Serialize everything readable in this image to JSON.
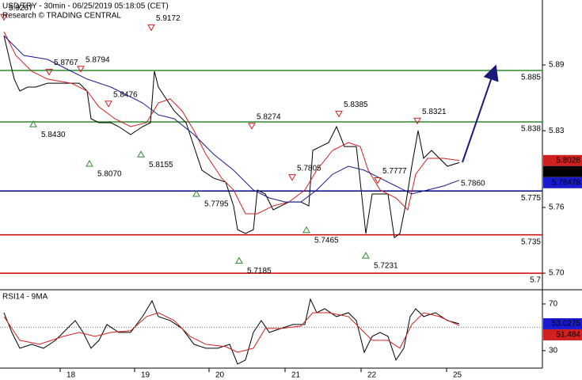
{
  "chart_data": [
    {
      "type": "line",
      "title": "USD/TRY - 30min - 06/25/2019 05:18:05 (CET)",
      "subtitle": "Research © TRADING CENTRAL",
      "xlim": [
        0,
        342.5
      ],
      "ylim": [
        5.6856,
        5.9493
      ],
      "yticks": [
        5.89,
        5.83,
        5.76,
        {
          "value": 5.7,
          "label": "5.70"
        }
      ],
      "levels": [
        {
          "value": 5.885,
          "color": "#2e8b2e"
        },
        {
          "value": 5.838,
          "color": "#2e8b2e"
        },
        {
          "value": 5.775,
          "color": "#00008b"
        },
        {
          "value": 5.735,
          "color": "#cc0000"
        },
        {
          "value": 5.7,
          "color": "#cc0000"
        }
      ],
      "series": [
        {
          "color": "#000000",
          "box": "#000000",
          "x": [
            2.5,
            6,
            9,
            12.5,
            17.5,
            22.5,
            30,
            40,
            50,
            55,
            57.5,
            62.5,
            70,
            75,
            82.5,
            90,
            95,
            97.5,
            100,
            105,
            110,
            117.5,
            122.5,
            127.5,
            135,
            142.5,
            147.5,
            150,
            155,
            160,
            162.5,
            167.5,
            172.5,
            177.5,
            182.5,
            190,
            195,
            197.5,
            202.5,
            207.5,
            212.5,
            217.5,
            225,
            227.5,
            231,
            235,
            245,
            249,
            252.5,
            256,
            260,
            264,
            267.5,
            272.5,
            277.5,
            282.5,
            290
          ],
          "values": [
            5.9168,
            5.8951,
            5.8771,
            5.8662,
            5.8698,
            5.8698,
            5.8734,
            5.8734,
            5.8734,
            5.8662,
            5.8409,
            5.8373,
            5.8373,
            5.8337,
            5.8265,
            5.8337,
            5.8373,
            5.8843,
            5.8698,
            5.859,
            5.8481,
            5.8373,
            5.8156,
            5.794,
            5.7867,
            5.7831,
            5.7614,
            5.7398,
            5.7362,
            5.7398,
            5.7759,
            5.7723,
            5.7578,
            5.7614,
            5.765,
            5.765,
            5.7614,
            5.812,
            5.8156,
            5.8192,
            5.8337,
            5.8156,
            5.8156,
            5.7831,
            5.7362,
            5.7723,
            5.7723,
            5.7325,
            5.7362,
            5.7614,
            5.7976,
            5.8301,
            5.8048,
            5.812,
            5.8048,
            5.7976,
            5.8009
          ]
        },
        {
          "color": "#d02020",
          "box": "#d02020",
          "x": [
            2.5,
            10,
            20,
            30,
            45,
            55,
            62.5,
            72.5,
            82.5,
            92.5,
            100,
            107.5,
            115,
            122.5,
            130,
            140,
            147.5,
            155,
            162.5,
            172.5,
            182.5,
            192.5,
            200,
            210,
            220,
            227.5,
            232.5,
            240,
            250,
            257.5,
            262.5,
            270,
            280,
            290
          ],
          "values": [
            5.9204,
            5.8987,
            5.8843,
            5.8771,
            5.8734,
            5.8662,
            5.8518,
            5.8409,
            5.8337,
            5.8373,
            5.8554,
            5.859,
            5.8481,
            5.8301,
            5.8084,
            5.7867,
            5.7759,
            5.7542,
            5.7542,
            5.7614,
            5.765,
            5.7759,
            5.794,
            5.812,
            5.8192,
            5.8156,
            5.794,
            5.7759,
            5.7687,
            5.7578,
            5.7903,
            5.8048,
            5.8048,
            5.8028
          ]
        },
        {
          "color": "#1a1a8c",
          "box": "#1a1ad0",
          "x": [
            2.5,
            15,
            30,
            45,
            55,
            70,
            80,
            90,
            100,
            110,
            122.5,
            135,
            147.5,
            160,
            170,
            180,
            190,
            200,
            210,
            220,
            230,
            240,
            250,
            260,
            270,
            280,
            290
          ],
          "values": [
            5.9168,
            5.8987,
            5.8951,
            5.8843,
            5.8771,
            5.8698,
            5.8626,
            5.8554,
            5.8445,
            5.8409,
            5.8265,
            5.8084,
            5.794,
            5.7759,
            5.7687,
            5.765,
            5.765,
            5.7759,
            5.7903,
            5.7976,
            5.794,
            5.7867,
            5.7795,
            5.7723,
            5.7759,
            5.7795,
            5.78478
          ]
        }
      ],
      "annotations": [
        {
          "x": 2.5,
          "value": 5.9267,
          "dir": "down"
        },
        {
          "x": 31,
          "value": 5.8767,
          "dir": "down"
        },
        {
          "x": 51,
          "value": 5.8794,
          "dir": "down"
        },
        {
          "x": 95.5,
          "value": 5.9172,
          "dir": "down"
        },
        {
          "x": 68.5,
          "value": 5.8476,
          "dir": "down"
        },
        {
          "x": 159,
          "value": 5.8274,
          "dir": "down"
        },
        {
          "x": 184.5,
          "value": 5.7805,
          "dir": "down"
        },
        {
          "x": 214,
          "value": 5.8385,
          "dir": "down"
        },
        {
          "x": 238.5,
          "value": 5.7777,
          "dir": "down"
        },
        {
          "x": 263.5,
          "value": 5.8321,
          "dir": "down"
        },
        {
          "x": 21,
          "value": 5.843,
          "label": "5.8430",
          "dir": "up"
        },
        {
          "x": 56.5,
          "value": 5.807,
          "label": "5.8070",
          "dir": "up"
        },
        {
          "x": 89,
          "value": 5.8155,
          "dir": "up"
        },
        {
          "x": 124,
          "value": 5.7795,
          "dir": "up"
        },
        {
          "x": 193.5,
          "value": 5.7465,
          "dir": "up"
        },
        {
          "x": 151,
          "value": 5.7185,
          "dir": "up"
        },
        {
          "x": 231,
          "value": 5.7231,
          "dir": "up"
        },
        {
          "x": 292,
          "value": 5.786,
          "label": "5.7860",
          "dir": "none"
        }
      ],
      "projection": {
        "color": "#1a1a7a",
        "x": [
          292,
          312
        ],
        "values": [
          5.8012,
          5.885
        ]
      }
    },
    {
      "type": "line",
      "title": "RSI14 - 9MA",
      "xlim": [
        0,
        342.5
      ],
      "ylim": [
        15,
        81.5
      ],
      "yticks": [
        70,
        30
      ],
      "midline": 50,
      "xticks": [
        {
          "value": 38,
          "label": "18"
        },
        {
          "value": 85,
          "label": "19"
        },
        {
          "value": 132,
          "label": "20"
        },
        {
          "value": 180,
          "label": "21"
        },
        {
          "value": 228,
          "label": "22"
        },
        {
          "value": 282,
          "label": "25"
        }
      ],
      "series": [
        {
          "color": "#000000",
          "box": "#1a1ad0",
          "x": [
            2.5,
            7.5,
            12.5,
            20,
            27.5,
            35,
            42.5,
            47.5,
            52.5,
            57.5,
            62.5,
            67.5,
            75,
            82.5,
            90,
            96,
            100,
            107.5,
            115,
            122.5,
            130,
            137.5,
            145,
            150,
            155,
            160,
            165,
            170,
            177.5,
            185,
            192.5,
            196,
            200,
            205,
            212.5,
            220,
            225,
            230,
            235,
            240,
            245,
            250,
            255,
            259,
            262.5,
            267.5,
            275,
            282.5,
            290
          ],
          "values": [
            62.5,
            45.6,
            32,
            35.4,
            32,
            38.8,
            49,
            55.8,
            45.6,
            32,
            38.8,
            52.4,
            45.6,
            45.6,
            59.2,
            72.7,
            59.2,
            55.8,
            49,
            35.4,
            32,
            32,
            35.4,
            18.5,
            21.9,
            45.6,
            55.8,
            45.6,
            49,
            52.4,
            52.4,
            74.1,
            62.5,
            65.9,
            59.2,
            62.5,
            55.8,
            28.6,
            42.2,
            45.6,
            42.2,
            21.9,
            32,
            59.2,
            65.9,
            59.2,
            62.5,
            55.8,
            53.0275
          ]
        },
        {
          "color": "#d02020",
          "box": "#d02020",
          "x": [
            2.5,
            12.5,
            25,
            40,
            50,
            60,
            70,
            82.5,
            92.5,
            100,
            110,
            120,
            130,
            142.5,
            150,
            160,
            167.5,
            177.5,
            190,
            197.5,
            207.5,
            220,
            227.5,
            235,
            245,
            252.5,
            260,
            267.5,
            277.5,
            290
          ],
          "values": [
            59.2,
            38.8,
            35.4,
            42.2,
            45.6,
            42.2,
            45.6,
            47,
            59.2,
            62.5,
            55.8,
            42.2,
            35.4,
            33.4,
            28.6,
            32,
            49,
            49,
            51,
            62.5,
            62.5,
            59.2,
            49,
            38.8,
            38.8,
            32,
            52.4,
            62.5,
            59.2,
            51.484
          ]
        }
      ]
    }
  ]
}
